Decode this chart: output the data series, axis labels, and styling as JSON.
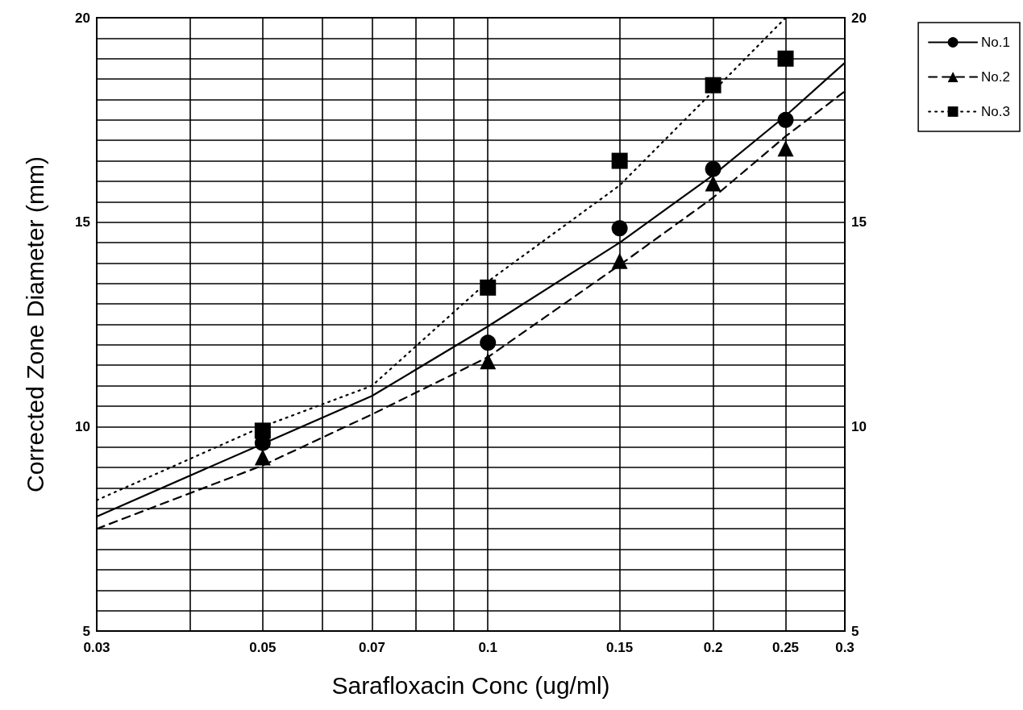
{
  "chart_data": {
    "type": "scatter",
    "xlabel": "Sarafloxacin Conc (ug/ml)",
    "ylabel": "Corrected Zone Diameter (mm)",
    "log": "x",
    "xlim": [
      0.03,
      0.3
    ],
    "xticks": [
      0.03,
      {
        "value": 0.04,
        "label": null
      },
      0.05,
      {
        "value": 0.06,
        "label": null
      },
      0.07,
      {
        "value": 0.08,
        "label": null
      },
      {
        "value": 0.09,
        "label": null
      },
      0.1,
      0.15,
      0.2,
      0.25,
      0.3
    ],
    "ylim": [
      5,
      20
    ],
    "yticks": [
      5,
      {
        "value": 5.5,
        "label": null
      },
      {
        "value": 6,
        "label": null
      },
      {
        "value": 6.5,
        "label": null
      },
      {
        "value": 7,
        "label": null
      },
      {
        "value": 7.5,
        "label": null
      },
      {
        "value": 8,
        "label": null
      },
      {
        "value": 8.5,
        "label": null
      },
      {
        "value": 9,
        "label": null
      },
      {
        "value": 9.5,
        "label": null
      },
      10,
      {
        "value": 10.5,
        "label": null
      },
      {
        "value": 11,
        "label": null
      },
      {
        "value": 11.5,
        "label": null
      },
      {
        "value": 12,
        "label": null
      },
      {
        "value": 12.5,
        "label": null
      },
      {
        "value": 13,
        "label": null
      },
      {
        "value": 13.5,
        "label": null
      },
      {
        "value": 14,
        "label": null
      },
      {
        "value": 14.5,
        "label": null
      },
      15,
      {
        "value": 15.5,
        "label": null
      },
      {
        "value": 16,
        "label": null
      },
      {
        "value": 16.5,
        "label": null
      },
      {
        "value": 17,
        "label": null
      },
      {
        "value": 17.5,
        "label": null
      },
      {
        "value": 18,
        "label": null
      },
      {
        "value": 18.5,
        "label": null
      },
      {
        "value": 19,
        "label": null
      },
      {
        "value": 19.5,
        "label": null
      },
      20
    ],
    "y2lim": [
      5,
      20
    ],
    "y2ticks": [
      5,
      10,
      15,
      20
    ],
    "grid": true,
    "legend": "top right",
    "series": [
      {
        "type": "line",
        "name": "No.1",
        "color": "#000000",
        "line_style": "solid",
        "x": [
          0.03,
          0.05,
          0.07,
          0.1,
          0.15,
          0.2,
          0.25,
          0.3
        ],
        "values": [
          7.8,
          9.58,
          10.75,
          12.45,
          14.5,
          16.15,
          17.6,
          18.9
        ]
      },
      {
        "type": "line",
        "name": "No.2",
        "color": "#000000",
        "line_style": "dashed",
        "x": [
          0.03,
          0.05,
          0.07,
          0.1,
          0.15,
          0.2,
          0.25,
          0.3
        ],
        "values": [
          7.5,
          9.05,
          10.3,
          11.7,
          13.95,
          15.6,
          17.1,
          18.2
        ]
      },
      {
        "type": "line",
        "name": "No.3",
        "color": "#000000",
        "line_style": "dotted",
        "x": [
          0.03,
          0.05,
          0.07,
          0.1,
          0.15,
          0.2,
          0.25
        ],
        "values": [
          8.2,
          10.0,
          11.0,
          13.55,
          15.9,
          18.2,
          20
        ]
      },
      {
        "color": "#000000",
        "marker": "circle",
        "x": [
          0.05,
          0.1,
          0.15,
          0.2,
          0.25
        ],
        "values": [
          9.6,
          12.05,
          14.85,
          16.3,
          17.5
        ]
      },
      {
        "color": "#000000",
        "marker": "triangle",
        "x": [
          0.05,
          0.1,
          0.15,
          0.2,
          0.25
        ],
        "values": [
          9.25,
          11.6,
          14.05,
          15.95,
          16.8
        ]
      },
      {
        "color": "#000000",
        "marker": "square",
        "x": [
          0.05,
          0.1,
          0.15,
          0.2,
          0.25
        ],
        "values": [
          9.9,
          13.4,
          16.5,
          18.35,
          19.0
        ]
      }
    ]
  }
}
